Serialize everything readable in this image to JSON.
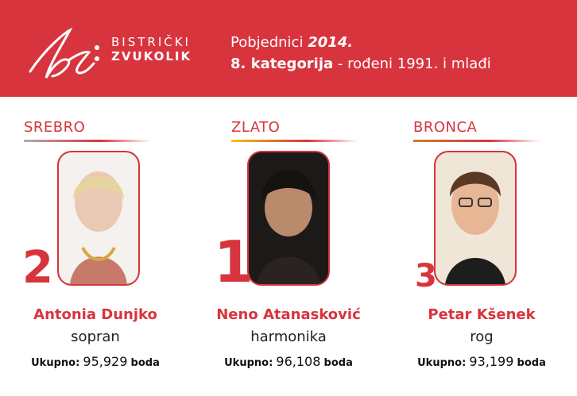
{
  "header": {
    "logo_line1": "BISTRIČKI",
    "logo_line2": "ZVUKOLIK",
    "title_prefix": "Pobjednici",
    "title_year": "2014.",
    "category": "8. kategorija",
    "category_suffix": " - rođeni 1991. i mlađi"
  },
  "colors": {
    "accent": "#d8343e",
    "silver": "#c0c0c0",
    "gold": "#f2c318",
    "bronze": "#cd7f32"
  },
  "winners": [
    {
      "medal": "SREBRO",
      "rank": "2",
      "name": "Antonia Dunjko",
      "instrument": "sopran",
      "score_label": "Ukupno:",
      "score": "95,929",
      "unit": "boda"
    },
    {
      "medal": "ZLATO",
      "rank": "1",
      "name": "Neno Atanasković",
      "instrument": "harmonika",
      "score_label": "Ukupno:",
      "score": "96,108",
      "unit": "boda"
    },
    {
      "medal": "BRONCA",
      "rank": "3",
      "name": "Petar Kšenek",
      "instrument": "rog",
      "score_label": "Ukupno:",
      "score": "93,199",
      "unit": "boda"
    }
  ]
}
